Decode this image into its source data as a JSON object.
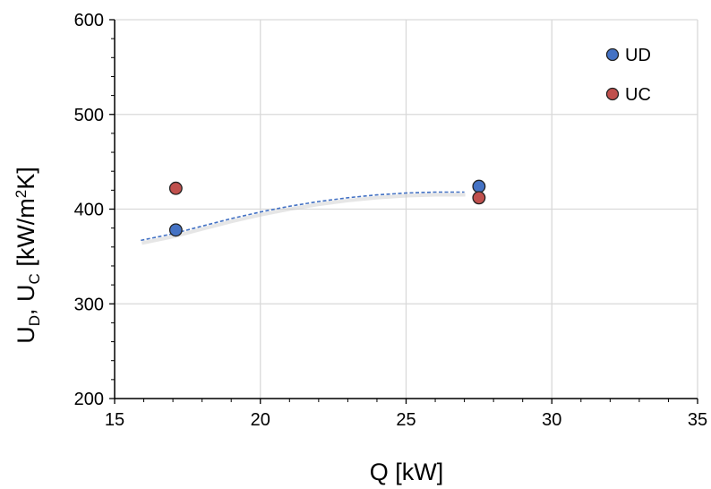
{
  "chart_data": {
    "type": "scatter",
    "xlabel": "Q [kW]",
    "ylabel_parts": {
      "u1": "U",
      "sub1": "D",
      "sep": ", ",
      "u2": "U",
      "sub2": "C",
      "unit_pre": " [kW/m",
      "unit_sup": "2",
      "unit_post": "K]"
    },
    "xlim": [
      15,
      35
    ],
    "ylim": [
      200,
      600
    ],
    "x_ticks": [
      "15",
      "20",
      "25",
      "30",
      "35"
    ],
    "y_ticks": [
      "200",
      "300",
      "400",
      "500",
      "600"
    ],
    "grid": true,
    "legend_position": "top-right",
    "series": [
      {
        "name": "UD",
        "color": "#4472c4",
        "points": [
          [
            17.1,
            378
          ],
          [
            27.5,
            424
          ]
        ]
      },
      {
        "name": "UC",
        "color": "#c0504d",
        "points": [
          [
            17.1,
            422
          ],
          [
            27.5,
            412
          ]
        ]
      }
    ],
    "trendline": {
      "style": "dashed",
      "color": "#4472c4",
      "points": [
        [
          15.9,
          367
        ],
        [
          17,
          374
        ],
        [
          18,
          382
        ],
        [
          19,
          390
        ],
        [
          20,
          397
        ],
        [
          21,
          403
        ],
        [
          22,
          408
        ],
        [
          23,
          412
        ],
        [
          24,
          415
        ],
        [
          25,
          417
        ],
        [
          26,
          418
        ],
        [
          27,
          418
        ]
      ]
    }
  }
}
